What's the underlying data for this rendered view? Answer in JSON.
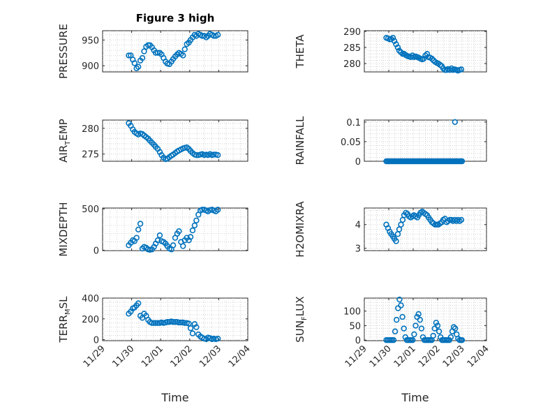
{
  "figure": {
    "title": "Figure 3 high",
    "accent_color": "#0072BD"
  },
  "chart_data": [
    {
      "type": "scatter",
      "name": "pressure",
      "ylabel": "PRESSURE",
      "ylim": [
        888,
        968
      ],
      "yticks": [
        900,
        950
      ],
      "xlim": [
        0,
        5
      ],
      "x": [
        0.9,
        0.97,
        1.04,
        1.1,
        1.17,
        1.23,
        1.3,
        1.37,
        1.43,
        1.5,
        1.57,
        1.63,
        1.7,
        1.77,
        1.83,
        1.9,
        1.97,
        2.03,
        2.1,
        2.17,
        2.23,
        2.3,
        2.37,
        2.43,
        2.5,
        2.57,
        2.63,
        2.7,
        2.77,
        2.83,
        2.9,
        2.97,
        3.03,
        3.1,
        3.17,
        3.23,
        3.3,
        3.37,
        3.43,
        3.5,
        3.57,
        3.63,
        3.7,
        3.77,
        3.83,
        3.9,
        3.97
      ],
      "y": [
        920,
        920,
        912,
        905,
        895,
        898,
        910,
        915,
        928,
        937,
        940,
        940,
        936,
        930,
        925,
        925,
        925,
        922,
        915,
        908,
        904,
        903,
        908,
        913,
        918,
        922,
        925,
        923,
        920,
        932,
        942,
        945,
        950,
        955,
        960,
        958,
        962,
        960,
        958,
        958,
        955,
        958,
        962,
        960,
        958,
        958,
        960
      ]
    },
    {
      "type": "scatter",
      "name": "theta",
      "ylabel": "THETA",
      "ylim": [
        277.4,
        290.2
      ],
      "yticks": [
        280,
        285,
        290
      ],
      "xlim": [
        0,
        5
      ],
      "x": [
        0.9,
        0.97,
        1.04,
        1.1,
        1.17,
        1.23,
        1.3,
        1.37,
        1.43,
        1.5,
        1.57,
        1.63,
        1.7,
        1.77,
        1.83,
        1.9,
        1.97,
        2.03,
        2.1,
        2.17,
        2.23,
        2.3,
        2.37,
        2.43,
        2.5,
        2.57,
        2.63,
        2.7,
        2.77,
        2.83,
        2.9,
        2.97,
        3.03,
        3.1,
        3.17,
        3.23,
        3.3,
        3.37,
        3.43,
        3.5,
        3.57,
        3.63,
        3.7,
        3.77,
        3.83,
        3.9,
        3.97
      ],
      "y": [
        288,
        287.8,
        287.5,
        287.6,
        288,
        287,
        286,
        285,
        284,
        283.5,
        283,
        283,
        282.6,
        282.3,
        282.2,
        282,
        282.5,
        282,
        282.2,
        282,
        281.8,
        281.5,
        281.3,
        281.5,
        282.5,
        283,
        282,
        281.8,
        281.5,
        281,
        280.5,
        280.2,
        280,
        279.6,
        279.2,
        278.5,
        278,
        278,
        278.3,
        278,
        278.5,
        278,
        278.2,
        278,
        277.8,
        278,
        278.2
      ]
    },
    {
      "type": "scatter",
      "name": "air-temp",
      "ylabel": "AIR_TEMP",
      "ylim": [
        273.6,
        281.6
      ],
      "yticks": [
        275,
        280
      ],
      "xlim": [
        0,
        5
      ],
      "x": [
        0.9,
        0.97,
        1.04,
        1.1,
        1.17,
        1.23,
        1.3,
        1.37,
        1.43,
        1.5,
        1.57,
        1.63,
        1.7,
        1.77,
        1.83,
        1.9,
        1.97,
        2.03,
        2.1,
        2.17,
        2.23,
        2.3,
        2.37,
        2.43,
        2.5,
        2.57,
        2.63,
        2.7,
        2.77,
        2.83,
        2.9,
        2.97,
        3.03,
        3.1,
        3.17,
        3.23,
        3.3,
        3.37,
        3.43,
        3.5,
        3.57,
        3.63,
        3.7,
        3.77,
        3.83,
        3.9,
        3.97
      ],
      "y": [
        281,
        280.5,
        279.8,
        279.3,
        279,
        278.8,
        279,
        278.9,
        278.6,
        278.3,
        278,
        277.6,
        277.2,
        276.8,
        276.4,
        276,
        275.4,
        274.8,
        274.3,
        274,
        274.1,
        274.4,
        274.7,
        274.9,
        275.2,
        275.5,
        275.7,
        275.9,
        276.1,
        276.2,
        276.3,
        276,
        275.6,
        275.2,
        274.9,
        274.8,
        274.8,
        274.9,
        275,
        274.8,
        274.9,
        274.8,
        275,
        274.8,
        274.9,
        274.9,
        274.8
      ]
    },
    {
      "type": "scatter",
      "name": "rainfall",
      "ylabel": "RAINFALL",
      "ylim": [
        0,
        0.105
      ],
      "yticks": [
        0,
        0.05,
        0.1
      ],
      "ytick_labels": [
        "0",
        "0.05",
        "0.1"
      ],
      "xlim": [
        0,
        5
      ],
      "x": [
        0.9,
        0.95,
        1,
        1.05,
        1.1,
        1.15,
        1.2,
        1.25,
        1.3,
        1.35,
        1.4,
        1.45,
        1.5,
        1.55,
        1.6,
        1.65,
        1.7,
        1.75,
        1.8,
        1.85,
        1.9,
        1.95,
        2,
        2.05,
        2.1,
        2.15,
        2.2,
        2.25,
        2.3,
        2.35,
        2.4,
        2.45,
        2.5,
        2.55,
        2.6,
        2.65,
        2.7,
        2.75,
        2.8,
        2.85,
        2.9,
        2.95,
        3,
        3.05,
        3.1,
        3.15,
        3.2,
        3.25,
        3.3,
        3.35,
        3.4,
        3.45,
        3.5,
        3.55,
        3.6,
        3.65,
        3.7,
        3.75,
        3.8,
        3.85,
        3.9,
        3.95,
        4,
        3.71
      ],
      "y": [
        0,
        0,
        0,
        0,
        0,
        0,
        0,
        0,
        0,
        0,
        0,
        0,
        0,
        0,
        0,
        0,
        0,
        0,
        0,
        0,
        0,
        0,
        0,
        0,
        0,
        0,
        0,
        0,
        0,
        0,
        0,
        0,
        0,
        0,
        0,
        0,
        0,
        0,
        0,
        0,
        0,
        0,
        0,
        0,
        0,
        0,
        0,
        0,
        0,
        0,
        0,
        0,
        0,
        0,
        0,
        0,
        0,
        0,
        0,
        0,
        0,
        0,
        0,
        0.1
      ]
    },
    {
      "type": "scatter",
      "name": "mixdepth",
      "ylabel": "MIXDEPTH",
      "ylim": [
        -5,
        510
      ],
      "yticks": [
        0,
        500
      ],
      "xlim": [
        0,
        5
      ],
      "x": [
        0.9,
        0.97,
        1.04,
        1.1,
        1.17,
        1.23,
        1.3,
        1.37,
        1.43,
        1.5,
        1.57,
        1.63,
        1.7,
        1.77,
        1.83,
        1.9,
        1.97,
        2.03,
        2.1,
        2.17,
        2.23,
        2.3,
        2.37,
        2.43,
        2.5,
        2.57,
        2.63,
        2.7,
        2.77,
        2.83,
        2.9,
        2.97,
        3.03,
        3.1,
        3.17,
        3.23,
        3.3,
        3.37,
        3.43,
        3.5,
        3.57,
        3.63,
        3.7,
        3.77,
        3.83,
        3.9,
        3.97
      ],
      "y": [
        60,
        90,
        120,
        110,
        150,
        250,
        320,
        20,
        40,
        30,
        10,
        5,
        10,
        40,
        80,
        120,
        180,
        110,
        100,
        80,
        50,
        20,
        10,
        60,
        150,
        200,
        230,
        100,
        50,
        120,
        150,
        120,
        160,
        240,
        300,
        360,
        430,
        480,
        490,
        490,
        480,
        470,
        485,
        490,
        480,
        470,
        490
      ]
    },
    {
      "type": "scatter",
      "name": "h2omixra",
      "ylabel": "H2OMIXRA",
      "ylim": [
        2.9,
        4.7
      ],
      "yticks": [
        3,
        4
      ],
      "xlim": [
        0,
        5
      ],
      "x": [
        0.9,
        0.97,
        1.04,
        1.1,
        1.17,
        1.23,
        1.3,
        1.37,
        1.43,
        1.5,
        1.57,
        1.63,
        1.7,
        1.77,
        1.83,
        1.9,
        1.97,
        2.03,
        2.1,
        2.17,
        2.23,
        2.3,
        2.37,
        2.43,
        2.5,
        2.57,
        2.63,
        2.7,
        2.77,
        2.83,
        2.9,
        2.97,
        3.03,
        3.1,
        3.17,
        3.23,
        3.3,
        3.37,
        3.43,
        3.5,
        3.57,
        3.63,
        3.7,
        3.77,
        3.83,
        3.9,
        3.97
      ],
      "y": [
        4,
        3.85,
        3.7,
        3.6,
        3.5,
        3.4,
        3.3,
        3.6,
        3.8,
        4,
        4.2,
        4.4,
        4.5,
        4.45,
        4.35,
        4.3,
        4.35,
        4.4,
        4.35,
        4.3,
        4.4,
        4.5,
        4.55,
        4.5,
        4.45,
        4.4,
        4.3,
        4.2,
        4.1,
        4.05,
        4,
        4,
        4,
        4.05,
        4.1,
        4.2,
        4.25,
        4.1,
        4.15,
        4.2,
        4.2,
        4.15,
        4.2,
        4.15,
        4.2,
        4.15,
        4.2
      ]
    },
    {
      "type": "scatter",
      "name": "terr-msl",
      "ylabel": "TERR_MSL",
      "ylim": [
        -10,
        400
      ],
      "yticks": [
        0,
        200,
        400
      ],
      "xlim": [
        0,
        5
      ],
      "x": [
        0.9,
        0.97,
        1.04,
        1.1,
        1.17,
        1.23,
        1.3,
        1.37,
        1.43,
        1.5,
        1.57,
        1.63,
        1.7,
        1.77,
        1.83,
        1.9,
        1.97,
        2.03,
        2.1,
        2.17,
        2.23,
        2.3,
        2.37,
        2.43,
        2.5,
        2.57,
        2.63,
        2.7,
        2.77,
        2.83,
        2.9,
        2.97,
        3.03,
        3.1,
        3.17,
        3.23,
        3.3,
        3.37,
        3.43,
        3.5,
        3.57,
        3.63,
        3.7,
        3.77,
        3.83,
        3.9,
        3.97
      ],
      "y": [
        250,
        270,
        300,
        310,
        330,
        350,
        230,
        210,
        250,
        230,
        190,
        170,
        160,
        160,
        160,
        160,
        160,
        165,
        160,
        165,
        170,
        170,
        175,
        170,
        170,
        170,
        165,
        165,
        165,
        160,
        160,
        155,
        110,
        60,
        150,
        120,
        50,
        30,
        20,
        10,
        5,
        20,
        15,
        5,
        10,
        5,
        10
      ]
    },
    {
      "type": "scatter",
      "name": "sun-flux",
      "ylabel": "SUN_FLUX",
      "ylim": [
        -2,
        145
      ],
      "yticks": [
        0,
        50,
        100
      ],
      "xlim": [
        0,
        5
      ],
      "x": [
        0.9,
        0.96,
        1.02,
        1.08,
        1.14,
        1.2,
        1.26,
        1.32,
        1.38,
        1.44,
        1.5,
        1.56,
        1.62,
        1.68,
        1.74,
        1.8,
        1.86,
        1.92,
        1.98,
        2.04,
        2.1,
        2.16,
        2.22,
        2.28,
        2.34,
        2.4,
        2.46,
        2.52,
        2.58,
        2.64,
        2.7,
        2.76,
        2.82,
        2.88,
        2.94,
        3,
        3.06,
        3.12,
        3.18,
        3.24,
        3.3,
        3.36,
        3.42,
        3.48,
        3.54,
        3.6,
        3.66,
        3.72,
        3.78,
        3.84,
        3.9,
        3.96,
        4
      ],
      "y": [
        0,
        0,
        0,
        0,
        0,
        0,
        30,
        70,
        110,
        140,
        120,
        80,
        40,
        10,
        0,
        0,
        0,
        0,
        0,
        20,
        50,
        80,
        90,
        70,
        40,
        10,
        0,
        0,
        0,
        0,
        0,
        0,
        15,
        40,
        60,
        50,
        30,
        10,
        0,
        0,
        0,
        0,
        0,
        0,
        10,
        30,
        45,
        40,
        20,
        5,
        0,
        0,
        0
      ]
    }
  ],
  "xaxis": {
    "label": "Time",
    "ticks": [
      0,
      1,
      2,
      3,
      4,
      5
    ],
    "tick_labels": [
      "11/29",
      "11/30",
      "12/01",
      "12/02",
      "12/03",
      "12/04"
    ]
  }
}
